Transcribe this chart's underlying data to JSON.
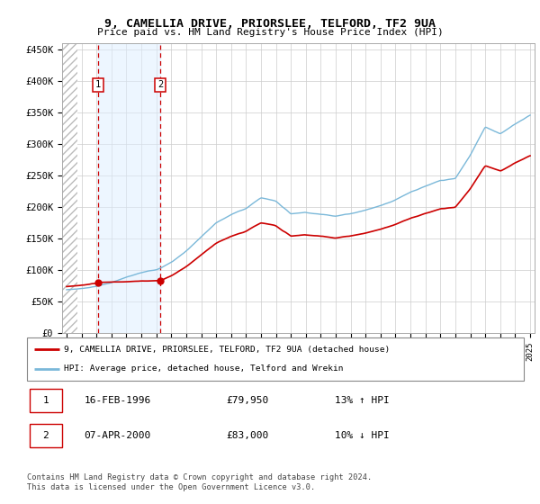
{
  "title_line1": "9, CAMELLIA DRIVE, PRIORSLEE, TELFORD, TF2 9UA",
  "title_line2": "Price paid vs. HM Land Registry's House Price Index (HPI)",
  "ylabel_ticks": [
    "£0",
    "£50K",
    "£100K",
    "£150K",
    "£200K",
    "£250K",
    "£300K",
    "£350K",
    "£400K",
    "£450K"
  ],
  "ytick_values": [
    0,
    50000,
    100000,
    150000,
    200000,
    250000,
    300000,
    350000,
    400000,
    450000
  ],
  "ylim": [
    0,
    460000
  ],
  "xlim_start": 1993.7,
  "xlim_end": 2025.3,
  "hpi_color": "#7ab8d9",
  "price_color": "#cc0000",
  "transaction1_x": 1996.12,
  "transaction1_y": 79950,
  "transaction2_x": 2000.27,
  "transaction2_y": 83000,
  "transaction1_label": "1",
  "transaction2_label": "2",
  "vline_color": "#cc0000",
  "shade_color": "#ddeeff",
  "shade_alpha": 0.5,
  "legend_line1": "9, CAMELLIA DRIVE, PRIORSLEE, TELFORD, TF2 9UA (detached house)",
  "legend_line2": "HPI: Average price, detached house, Telford and Wrekin",
  "table_row1": [
    "1",
    "16-FEB-1996",
    "£79,950",
    "13% ↑ HPI"
  ],
  "table_row2": [
    "2",
    "07-APR-2000",
    "£83,000",
    "10% ↓ HPI"
  ],
  "footnote": "Contains HM Land Registry data © Crown copyright and database right 2024.\nThis data is licensed under the Open Government Licence v3.0.",
  "hatch_color": "#bbbbbb",
  "grid_color": "#cccccc"
}
